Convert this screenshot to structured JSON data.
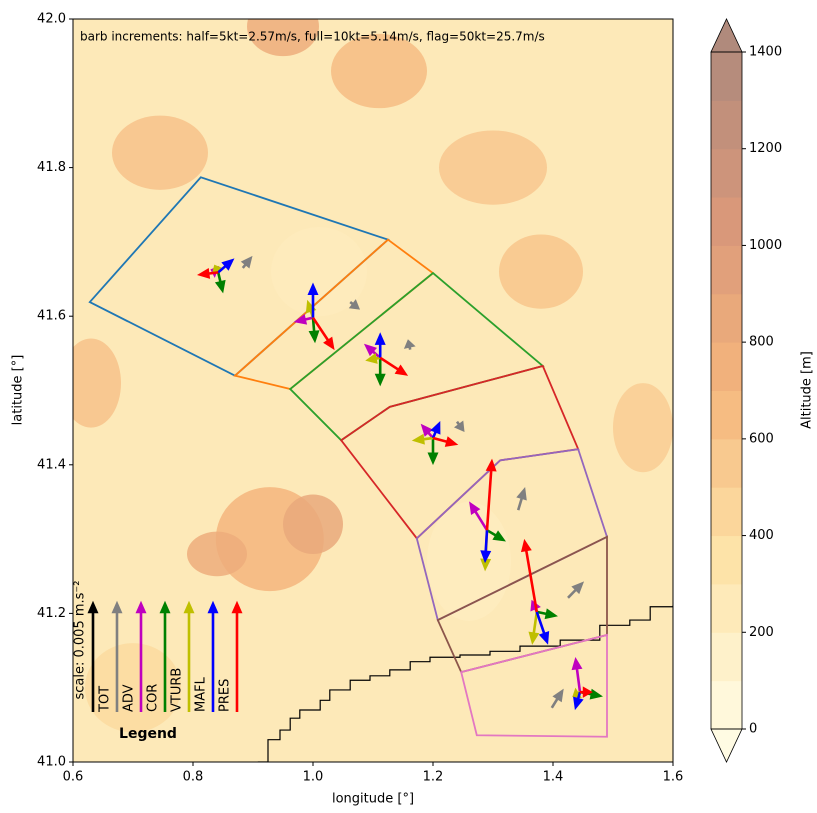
{
  "chart_data": {
    "type": "vector-map",
    "annotation": "barb increments: half=5kt=2.57m/s, full=10kt=5.14m/s, flag=50kt=25.7m/s",
    "x_label": "longitude [°]",
    "y_label": "latitude [°]",
    "xlim": [
      0.6,
      1.6
    ],
    "ylim": [
      41.0,
      42.0
    ],
    "xticks": [
      0.6,
      0.8,
      {
        "value": 1,
        "label": "1.0"
      },
      1.2,
      1.4,
      1.6
    ],
    "yticks": [
      {
        "value": 41,
        "label": "41.0"
      },
      41.2,
      41.4,
      41.6,
      41.8,
      {
        "value": 42,
        "label": "42.0"
      }
    ],
    "colorbar": {
      "label": "Altitude [m]",
      "lim": [
        0,
        1400
      ],
      "ticks": [
        0,
        200,
        400,
        600,
        800,
        1000,
        1200,
        1400
      ],
      "colors": [
        "#fffbe3",
        "#fde3a8",
        "#f5b57c",
        "#d9987a",
        "#b08a7c"
      ]
    },
    "contours": {
      "lon": [
        0.928,
        1.0,
        0.84,
        0.95,
        1.11,
        0.63,
        1.38,
        0.745,
        1.26,
        1.01,
        1.55,
        1.3,
        0.7
      ],
      "lat": [
        41.3,
        41.32,
        41.28,
        41.99,
        41.93,
        41.51,
        41.66,
        41.82,
        41.27,
        41.66,
        41.45,
        41.8,
        41.1
      ],
      "radius_lon": [
        0.09,
        0.05,
        0.05,
        0.06,
        0.08,
        0.05,
        0.07,
        0.08,
        0.07,
        0.08,
        0.05,
        0.09,
        0.08
      ],
      "radius_lat": [
        0.07,
        0.04,
        0.03,
        0.04,
        0.05,
        0.06,
        0.05,
        0.05,
        0.08,
        0.06,
        0.06,
        0.05,
        0.06
      ],
      "altitude": [
        700,
        850,
        800,
        800,
        650,
        600,
        580,
        600,
        220,
        230,
        520,
        560,
        420
      ]
    },
    "regions": [
      {
        "color": "#1f77b4",
        "lon": [
          0.628,
          0.813,
          1.125,
          0.87
        ],
        "lat": [
          41.619,
          41.787,
          41.703,
          41.52
        ]
      },
      {
        "color": "#ff7f0e",
        "lon": [
          1.125,
          1.2,
          0.962,
          0.87
        ],
        "lat": [
          41.703,
          41.658,
          41.502,
          41.52
        ]
      },
      {
        "color": "#2ca02c",
        "lon": [
          1.2,
          1.383,
          1.128,
          1.047,
          0.962
        ],
        "lat": [
          41.658,
          41.533,
          41.478,
          41.433,
          41.502
        ]
      },
      {
        "color": "#d62728",
        "lon": [
          1.047,
          1.128,
          1.383,
          1.442,
          1.312,
          1.173
        ],
        "lat": [
          41.433,
          41.478,
          41.533,
          41.421,
          41.406,
          41.301
        ]
      },
      {
        "color": "#9467bd",
        "lon": [
          1.173,
          1.312,
          1.442,
          1.49,
          1.208
        ],
        "lat": [
          41.301,
          41.406,
          41.421,
          41.303,
          41.191
        ]
      },
      {
        "color": "#8c564b",
        "lon": [
          1.208,
          1.49,
          1.49,
          1.247
        ],
        "lat": [
          41.191,
          41.303,
          41.171,
          41.121
        ]
      },
      {
        "color": "#e377c2",
        "lon": [
          1.247,
          1.49,
          1.49,
          1.273
        ],
        "lat": [
          41.121,
          41.171,
          41.034,
          41.036
        ]
      }
    ],
    "coastline": {
      "color": "#000000",
      "lon": [
        0.908,
        0.925,
        0.945,
        0.962,
        0.978,
        1.012,
        1.028,
        1.062,
        1.095,
        1.128,
        1.162,
        1.195,
        1.245,
        1.295,
        1.345,
        1.412,
        1.478,
        1.528,
        1.562,
        1.6
      ],
      "lat": [
        41.0,
        41.03,
        41.043,
        41.059,
        41.07,
        41.083,
        41.097,
        41.11,
        41.116,
        41.124,
        41.135,
        41.141,
        41.144,
        41.149,
        41.156,
        41.164,
        41.184,
        41.191,
        41.209,
        41.211
      ]
    },
    "stations": {
      "lon": [
        0.842,
        1.0,
        1.112,
        1.2,
        1.29,
        1.373,
        1.445
      ],
      "lat": [
        41.659,
        41.598,
        41.544,
        41.436,
        41.312,
        41.202,
        41.094
      ]
    },
    "legend": {
      "title": "Legend",
      "scale_label": "scale: 0.005 m.s⁻²",
      "scale_color": "#000000"
    },
    "series": [
      {
        "name": "TOT",
        "color": "#808080",
        "lon": [
          0.883,
          1.062,
          1.162,
          1.24,
          1.342,
          1.425,
          1.398
        ],
        "lat": [
          41.665,
          41.619,
          41.555,
          41.458,
          41.339,
          41.221,
          41.073
        ],
        "u": [
          0.013,
          0.013,
          -0.003,
          0.01,
          0.01,
          0.023,
          0.017
        ],
        "v": [
          0.013,
          -0.008,
          0.011,
          -0.011,
          0.027,
          0.019,
          0.022
        ]
      },
      {
        "name": "ADV",
        "color": "#bf00bf",
        "u": [
          -0.01,
          -0.027,
          -0.023,
          -0.017,
          -0.027,
          -0.007,
          -0.007
        ],
        "v": [
          0.003,
          -0.005,
          0.016,
          0.016,
          0.035,
          0.013,
          0.043
        ]
      },
      {
        "name": "COR",
        "color": "#008000",
        "u": [
          0.007,
          0.003,
          0,
          0,
          0.027,
          0.03,
          0.033
        ],
        "v": [
          -0.024,
          -0.03,
          -0.034,
          -0.032,
          -0.013,
          -0.005,
          -0.005
        ]
      },
      {
        "name": "VTURB",
        "color": "#bfbf00",
        "u": [
          -0.005,
          -0.008,
          -0.02,
          -0.03,
          -0.003,
          -0.007,
          -0.01
        ],
        "v": [
          0.008,
          0.02,
          -0.003,
          -0.003,
          -0.051,
          -0.04,
          -0.005
        ]
      },
      {
        "name": "MAFL",
        "color": "#0000ff",
        "u": [
          0.023,
          0,
          0,
          0.01,
          -0.003,
          0.017,
          -0.007
        ],
        "v": [
          0.016,
          0.043,
          0.03,
          0.019,
          -0.04,
          -0.04,
          -0.02
        ]
      },
      {
        "name": "PRES",
        "color": "#ff0000",
        "u": [
          -0.03,
          0.033,
          0.042,
          0.037,
          0.008,
          -0.02,
          0.017
        ],
        "v": [
          -0.003,
          -0.04,
          -0.022,
          -0.008,
          0.092,
          0.094,
          0
        ]
      }
    ]
  }
}
